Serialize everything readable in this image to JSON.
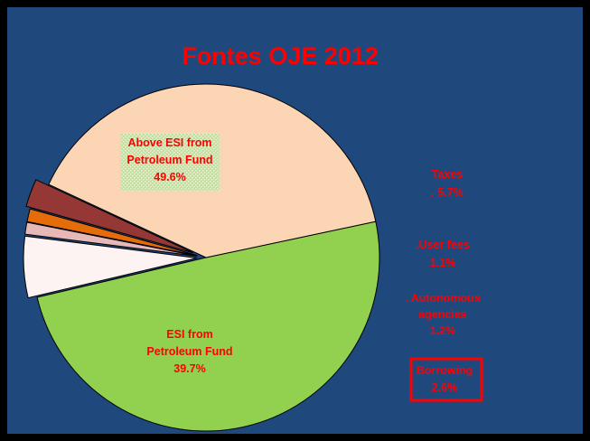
{
  "chart_data": {
    "type": "pie",
    "title": "Fontes OJE 2012",
    "slices": [
      {
        "key": "above_esi",
        "label_lines": [
          "Above ESI from",
          "Petroleum  Fund",
          "49.6%"
        ],
        "value": 49.6,
        "color": "#92d050",
        "exploded": false
      },
      {
        "key": "taxes",
        "label_lines": [
          "Taxes",
          ". 5.7%"
        ],
        "value": 5.7,
        "color": "#fdf3f3",
        "exploded": true
      },
      {
        "key": "user_fees",
        "label_lines": [
          ".User fees",
          "1.1%"
        ],
        "value": 1.1,
        "color": "#e6b9b8",
        "exploded": true
      },
      {
        "key": "autonomous_agencies",
        "label_lines": [
          ". Autonomous",
          "agencies",
          "1.2%"
        ],
        "value": 1.2,
        "color": "#e46c0a",
        "exploded": true
      },
      {
        "key": "borrowing",
        "label_lines": [
          "Borrowing",
          "2.6%"
        ],
        "value": 2.6,
        "color": "#953735",
        "exploded": true
      },
      {
        "key": "esi",
        "label_lines": [
          "ESI from",
          "Petroleum  Fund",
          "39.7%"
        ],
        "value": 39.7,
        "color": "#fcd5b4",
        "exploded": false
      }
    ],
    "colors": {
      "background": "#1f497d",
      "frame": "#000000",
      "label": "#ff0000",
      "slice_outline": "#000000"
    },
    "legend": "none"
  }
}
